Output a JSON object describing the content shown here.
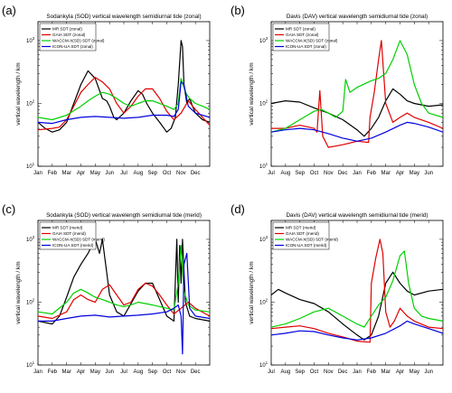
{
  "figure": {
    "panels": [
      {
        "label": "(a)",
        "title": "Sodankyla (SOD) vertical wavelength semidiurnal tide (zonal)"
      },
      {
        "label": "(b)",
        "title": "Davis (DAV) vertical wavelength semidiurnal tide (zonal)"
      },
      {
        "label": "(c)",
        "title": "Sodankyla (SOD) vertical wavelength semidiurnal tide (merid)"
      },
      {
        "label": "(d)",
        "title": "Davis (DAV) vertical wavelength semidiurnal tide (merid)"
      }
    ]
  },
  "colors": {
    "MR": "#000000",
    "GAIA": "#e00000",
    "WACCM": "#00d000",
    "ICON": "#0000e0"
  },
  "chart_data": [
    {
      "type": "line",
      "title": "Sodankyla (SOD) vertical wavelength semidiurnal tide (zonal)",
      "xlabel": "",
      "ylabel": "vertical wavelength / km",
      "yscale": "log",
      "ylim": [
        10,
        2000
      ],
      "ytick_labels": [
        "10^1",
        "10^2",
        "10^3"
      ],
      "categories": [
        "Jan",
        "Feb",
        "Mar",
        "Apr",
        "May",
        "Jun",
        "Jul",
        "Aug",
        "Sep",
        "Oct",
        "Nov",
        "Dec"
      ],
      "legend_position": "top-left",
      "series": [
        {
          "name": "MR SDT (zonal)",
          "color": "#000000",
          "x": [
            0,
            0.5,
            1,
            1.5,
            2,
            2.5,
            3,
            3.5,
            4,
            4.5,
            4.8,
            5,
            5.3,
            5.5,
            6,
            6.5,
            7,
            7.3,
            7.6,
            8,
            8.5,
            9,
            9.3,
            9.6,
            9.8,
            10,
            10.1,
            10.2,
            10.4,
            10.6,
            10.8,
            11,
            11.5,
            12
          ],
          "y": [
            50,
            40,
            35,
            38,
            50,
            100,
            200,
            330,
            250,
            120,
            110,
            90,
            60,
            55,
            70,
            110,
            160,
            140,
            100,
            70,
            50,
            35,
            40,
            60,
            200,
            1000,
            800,
            200,
            100,
            120,
            90,
            70,
            55,
            50
          ]
        },
        {
          "name": "GAIA SDT (zonal)",
          "color": "#e00000",
          "x": [
            0,
            1,
            1.5,
            2,
            2.5,
            3,
            3.5,
            4,
            4.5,
            5,
            5.5,
            6,
            6.5,
            7,
            7.5,
            8,
            8.5,
            9,
            9.5,
            10,
            10.5,
            11,
            12
          ],
          "y": [
            38,
            40,
            42,
            55,
            90,
            150,
            200,
            260,
            220,
            170,
            100,
            70,
            90,
            130,
            170,
            170,
            120,
            75,
            55,
            70,
            110,
            80,
            45
          ]
        },
        {
          "name": "WACCM-X(SD) SDT (zonal)",
          "color": "#00d000",
          "x": [
            0,
            1,
            2,
            3,
            3.5,
            4,
            4.5,
            5,
            5.5,
            6,
            6.5,
            7,
            7.5,
            8,
            8.5,
            9,
            9.5,
            9.8,
            10,
            10.3,
            10.6,
            11,
            11.5,
            12
          ],
          "y": [
            60,
            55,
            65,
            90,
            110,
            130,
            150,
            140,
            120,
            100,
            90,
            100,
            110,
            110,
            100,
            90,
            80,
            100,
            250,
            150,
            120,
            100,
            90,
            80
          ]
        },
        {
          "name": "ICON-UA SDT (zonal)",
          "color": "#0000e0",
          "x": [
            0,
            1,
            2,
            3,
            4,
            5,
            6,
            7,
            8,
            9,
            9.5,
            9.8,
            10,
            10.2,
            10.5,
            11,
            12
          ],
          "y": [
            50,
            48,
            55,
            60,
            62,
            60,
            58,
            60,
            65,
            65,
            62,
            80,
            220,
            200,
            90,
            70,
            60
          ]
        }
      ]
    },
    {
      "type": "line",
      "title": "Davis (DAV) vertical wavelength semidiurnal tide (zonal)",
      "xlabel": "",
      "ylabel": "vertical wavelength / km",
      "yscale": "log",
      "ylim": [
        10,
        2000
      ],
      "ytick_labels": [
        "10^1",
        "10^2",
        "10^3"
      ],
      "categories": [
        "Jul",
        "Aug",
        "Sep",
        "Oct",
        "Nov",
        "Dec",
        "Jan",
        "Feb",
        "Mar",
        "Apr",
        "May",
        "Jun"
      ],
      "legend_position": "top-left",
      "series": [
        {
          "name": "MR SDT (zonal)",
          "color": "#000000",
          "x": [
            0,
            1,
            2,
            3,
            4,
            5,
            6,
            6.5,
            7,
            7.5,
            8,
            8.5,
            9,
            9.5,
            10,
            11,
            12
          ],
          "y": [
            100,
            110,
            105,
            85,
            70,
            55,
            38,
            30,
            40,
            60,
            110,
            170,
            140,
            110,
            100,
            90,
            95
          ]
        },
        {
          "name": "GAIA SDT (zonal)",
          "color": "#e00000",
          "x": [
            0,
            1,
            2,
            3,
            3.2,
            3.4,
            3.6,
            4,
            5,
            6,
            6.8,
            6.9,
            7.2,
            7.5,
            7.7,
            8,
            8.5,
            9,
            9.5,
            10,
            11,
            12
          ],
          "y": [
            40,
            40,
            45,
            40,
            35,
            160,
            30,
            20,
            22,
            25,
            24,
            60,
            150,
            500,
            1000,
            100,
            50,
            60,
            70,
            60,
            50,
            40
          ]
        },
        {
          "name": "WACCM-X(SD) SDT (zonal)",
          "color": "#00d000",
          "x": [
            0,
            1,
            2,
            3,
            3.5,
            4,
            4.5,
            5,
            5.2,
            5.5,
            6,
            7,
            7.5,
            8,
            8.5,
            9,
            9.5,
            10,
            10.5,
            11,
            12
          ],
          "y": [
            35,
            40,
            55,
            75,
            80,
            70,
            60,
            75,
            240,
            150,
            180,
            230,
            250,
            300,
            500,
            1000,
            600,
            200,
            100,
            70,
            60
          ]
        },
        {
          "name": "ICON-UA SDT (zonal)",
          "color": "#0000e0",
          "x": [
            0,
            1,
            2,
            3,
            4,
            5,
            6,
            7,
            8,
            9,
            9.5,
            10,
            11,
            12
          ],
          "y": [
            35,
            38,
            40,
            38,
            33,
            28,
            25,
            28,
            35,
            45,
            50,
            48,
            42,
            35
          ]
        }
      ]
    },
    {
      "type": "line",
      "title": "Sodankyla (SOD) vertical wavelength semidiurnal tide (merid)",
      "xlabel": "",
      "ylabel": "vertical wavelength / km",
      "yscale": "log",
      "ylim": [
        10,
        2000
      ],
      "ytick_labels": [
        "10^1",
        "10^2",
        "10^3"
      ],
      "categories": [
        "Jan",
        "Feb",
        "Mar",
        "Apr",
        "May",
        "Jun",
        "Jul",
        "Aug",
        "Sep",
        "Oct",
        "Nov",
        "Dec"
      ],
      "legend_position": "top-left",
      "series": [
        {
          "name": "MR SDT (merid)",
          "color": "#000000",
          "x": [
            0,
            1,
            1.5,
            2,
            2.5,
            3,
            3.5,
            4,
            4.3,
            4.5,
            4.8,
            5,
            5.5,
            6,
            7,
            7.5,
            8,
            8.5,
            9,
            9.5,
            9.7,
            9.8,
            9.9,
            10,
            10.1,
            10.3,
            10.6,
            11,
            12
          ],
          "y": [
            50,
            45,
            60,
            120,
            250,
            400,
            600,
            1000,
            600,
            1000,
            300,
            130,
            70,
            60,
            150,
            200,
            200,
            110,
            60,
            50,
            1000,
            100,
            800,
            200,
            1000,
            100,
            60,
            55,
            50
          ]
        },
        {
          "name": "GAIA SDT (merid)",
          "color": "#e00000",
          "x": [
            0,
            1,
            2,
            2.5,
            3,
            3.5,
            4,
            4.5,
            5,
            5.5,
            6,
            6.5,
            7,
            7.5,
            8,
            8.5,
            9,
            9.5,
            10,
            10.5,
            11,
            12
          ],
          "y": [
            60,
            55,
            70,
            110,
            130,
            110,
            100,
            160,
            190,
            130,
            90,
            100,
            160,
            200,
            180,
            130,
            90,
            65,
            80,
            100,
            80,
            60
          ]
        },
        {
          "name": "WACCM-X(SD) SDT (merid)",
          "color": "#00d000",
          "x": [
            0,
            1,
            2,
            2.5,
            3,
            3.5,
            4,
            4.5,
            5,
            5.5,
            6,
            6.5,
            7,
            7.5,
            8,
            8.5,
            9,
            9.5,
            9.8,
            10,
            10.2,
            10.5,
            11,
            12
          ],
          "y": [
            70,
            65,
            100,
            140,
            160,
            140,
            120,
            110,
            100,
            90,
            85,
            90,
            100,
            95,
            90,
            85,
            80,
            75,
            200,
            800,
            150,
            90,
            75,
            70
          ]
        },
        {
          "name": "ICON-UA SDT (merid)",
          "color": "#0000e0",
          "x": [
            0,
            1,
            2,
            3,
            4,
            5,
            6,
            7,
            8,
            9,
            9.5,
            9.8,
            10,
            10.1,
            10.2,
            10.4,
            10.6,
            11,
            12
          ],
          "y": [
            50,
            50,
            55,
            60,
            62,
            58,
            60,
            62,
            65,
            70,
            80,
            90,
            60,
            15,
            400,
            600,
            80,
            60,
            55
          ]
        }
      ]
    },
    {
      "type": "line",
      "title": "Davis (DAV) vertical wavelength semidiurnal tide (merid)",
      "xlabel": "",
      "ylabel": "vertical wavelength / km",
      "yscale": "log",
      "ylim": [
        10,
        2000
      ],
      "ytick_labels": [
        "10^1",
        "10^2",
        "10^3"
      ],
      "categories": [
        "Jul",
        "Aug",
        "Sep",
        "Oct",
        "Nov",
        "Dec",
        "Jan",
        "Feb",
        "Mar",
        "Apr",
        "May",
        "Jun"
      ],
      "legend_position": "top-left",
      "series": [
        {
          "name": "MR SDT (merid)",
          "color": "#000000",
          "x": [
            0,
            0.5,
            1,
            2,
            3,
            4,
            5,
            6,
            6.5,
            7,
            7.5,
            8,
            8.5,
            9,
            9.5,
            10,
            11,
            12
          ],
          "y": [
            130,
            160,
            140,
            110,
            95,
            70,
            45,
            30,
            25,
            30,
            60,
            200,
            300,
            200,
            150,
            130,
            150,
            160
          ]
        },
        {
          "name": "GAIA SDT (merid)",
          "color": "#e00000",
          "x": [
            0,
            1,
            2,
            3,
            4,
            5,
            6,
            6.9,
            7,
            7.3,
            7.6,
            7.8,
            8,
            8.3,
            8.6,
            9,
            9.5,
            10,
            11,
            12
          ],
          "y": [
            38,
            40,
            42,
            38,
            32,
            28,
            24,
            23,
            200,
            500,
            1000,
            600,
            70,
            40,
            50,
            80,
            60,
            50,
            40,
            38
          ]
        },
        {
          "name": "WACCM-X(SD) SDT (merid)",
          "color": "#00d000",
          "x": [
            0,
            1,
            2,
            3,
            4,
            5,
            6,
            6.5,
            7,
            7.5,
            8,
            8.5,
            9,
            9.3,
            9.6,
            10,
            10.5,
            11,
            12
          ],
          "y": [
            40,
            45,
            55,
            70,
            80,
            60,
            45,
            40,
            60,
            90,
            120,
            220,
            550,
            650,
            200,
            80,
            60,
            55,
            50
          ]
        },
        {
          "name": "ICON-UA SDT (merid)",
          "color": "#0000e0",
          "x": [
            0,
            1,
            2,
            3,
            4,
            5,
            6,
            7,
            8,
            9,
            9.5,
            10,
            11,
            12
          ],
          "y": [
            30,
            32,
            35,
            34,
            30,
            27,
            25,
            27,
            32,
            42,
            50,
            45,
            38,
            32
          ]
        }
      ]
    }
  ]
}
